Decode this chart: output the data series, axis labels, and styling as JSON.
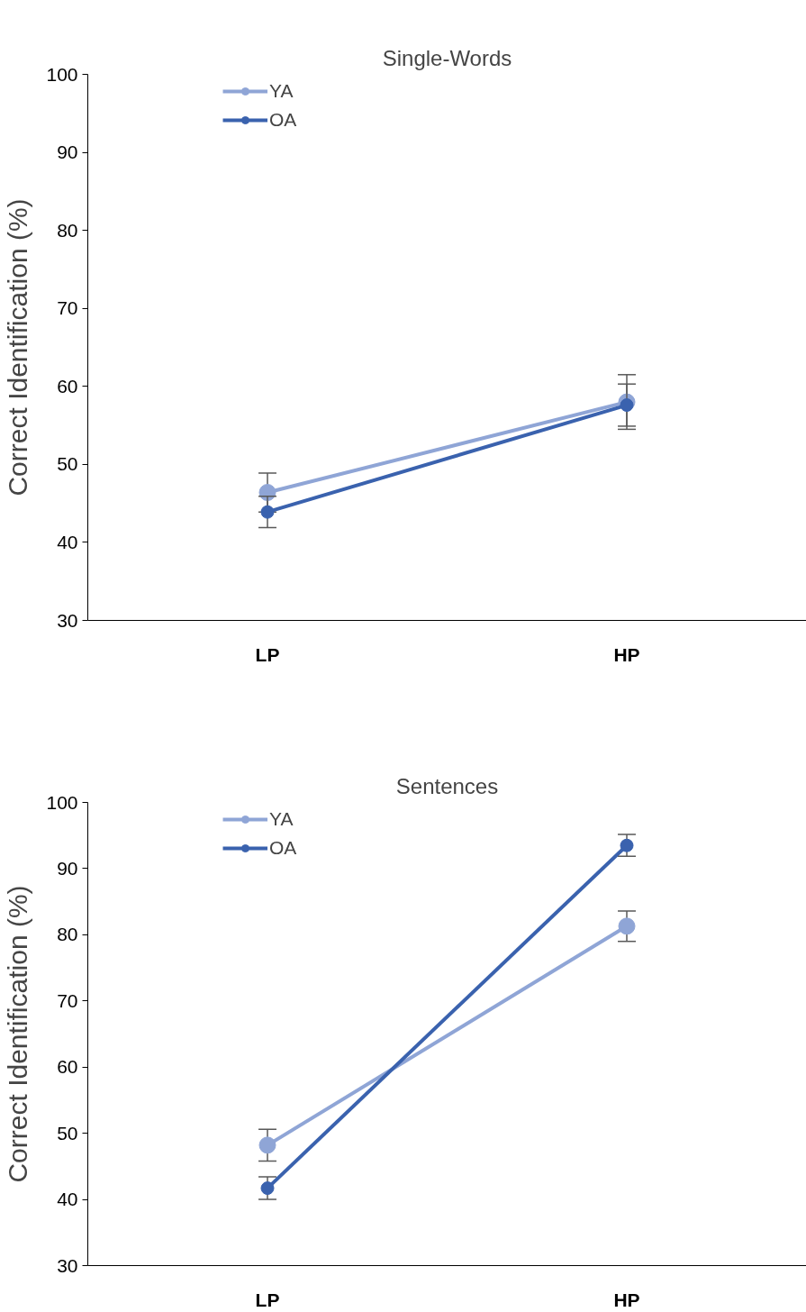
{
  "chart_data": [
    {
      "type": "line",
      "title": "Single-Words",
      "ylabel": "Correct Identification (%)",
      "categories": [
        "LP",
        "HP"
      ],
      "series": [
        {
          "name": "YA",
          "color": "#8fa5d6",
          "values": [
            46.4,
            58.0
          ],
          "errors": [
            2.5,
            3.5
          ]
        },
        {
          "name": "OA",
          "color": "#3a62ae",
          "values": [
            43.9,
            57.6
          ],
          "errors": [
            2.0,
            2.7
          ]
        }
      ],
      "ylim": [
        30,
        100
      ],
      "yticks": [
        30,
        40,
        50,
        60,
        70,
        80,
        90,
        100
      ],
      "grid": false,
      "legend": "top left",
      "marker": "circle",
      "line_style": "solid"
    },
    {
      "type": "line",
      "title": "Sentences",
      "ylabel": "Correct Identification (%)",
      "categories": [
        "LP",
        "HP"
      ],
      "series": [
        {
          "name": "YA",
          "color": "#8fa5d6",
          "values": [
            48.2,
            81.3
          ],
          "errors": [
            2.4,
            2.3
          ]
        },
        {
          "name": "OA",
          "color": "#3a62ae",
          "values": [
            41.7,
            93.5
          ],
          "errors": [
            1.7,
            1.65
          ]
        }
      ],
      "ylim": [
        30,
        100
      ],
      "yticks": [
        30,
        40,
        50,
        60,
        70,
        80,
        90,
        100
      ],
      "grid": false,
      "legend": "top left",
      "marker": "circle",
      "line_style": "solid"
    }
  ]
}
